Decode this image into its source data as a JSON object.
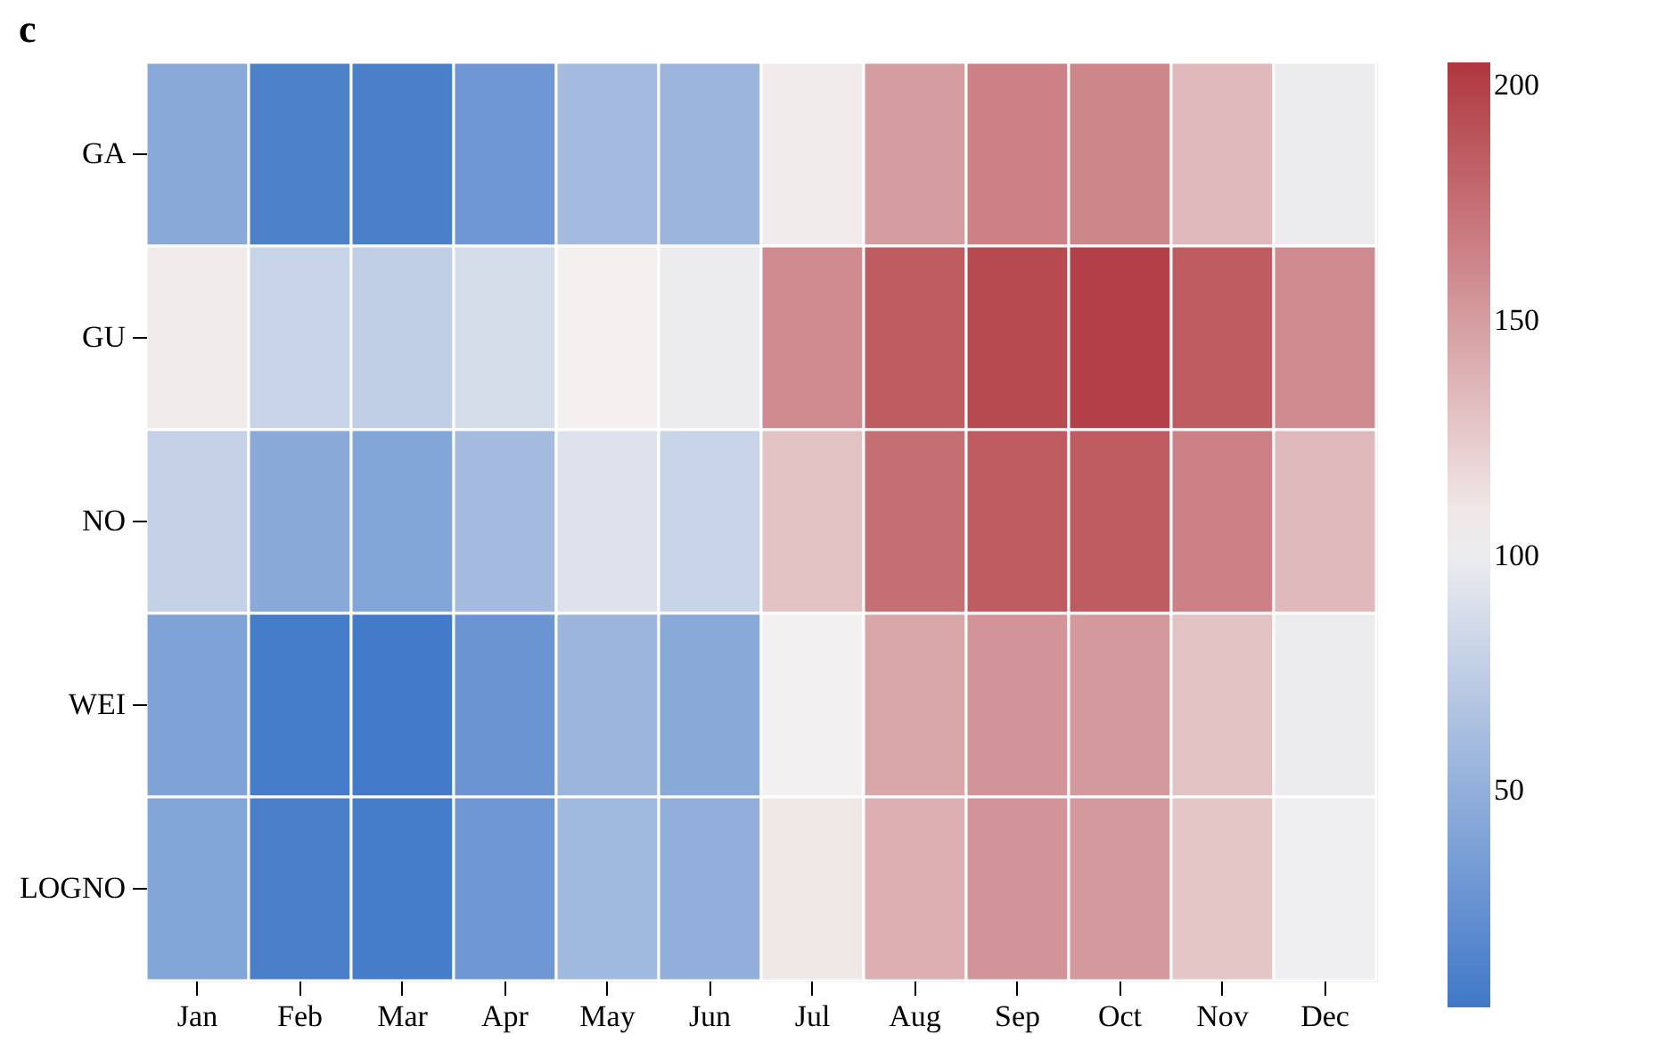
{
  "chart_data": {
    "type": "heatmap",
    "title": "c",
    "categories": [
      "Jan",
      "Feb",
      "Mar",
      "Apr",
      "May",
      "Jun",
      "Jul",
      "Aug",
      "Sep",
      "Oct",
      "Nov",
      "Dec"
    ],
    "y_categories": [
      "GA",
      "GU",
      "NO",
      "WEI",
      "LOGNO"
    ],
    "cells": [
      [
        45,
        12,
        10,
        30,
        60,
        55,
        108,
        150,
        165,
        162,
        135,
        100
      ],
      [
        108,
        80,
        75,
        88,
        105,
        100,
        160,
        185,
        195,
        200,
        185,
        160
      ],
      [
        78,
        45,
        42,
        60,
        92,
        80,
        130,
        175,
        185,
        185,
        165,
        135
      ],
      [
        40,
        8,
        6,
        28,
        55,
        45,
        104,
        145,
        155,
        152,
        130,
        100
      ],
      [
        42,
        10,
        8,
        30,
        58,
        50,
        110,
        140,
        155,
        152,
        128,
        102
      ]
    ],
    "clim": [
      4,
      205
    ],
    "cticks": [
      50,
      100,
      150,
      200
    ]
  }
}
